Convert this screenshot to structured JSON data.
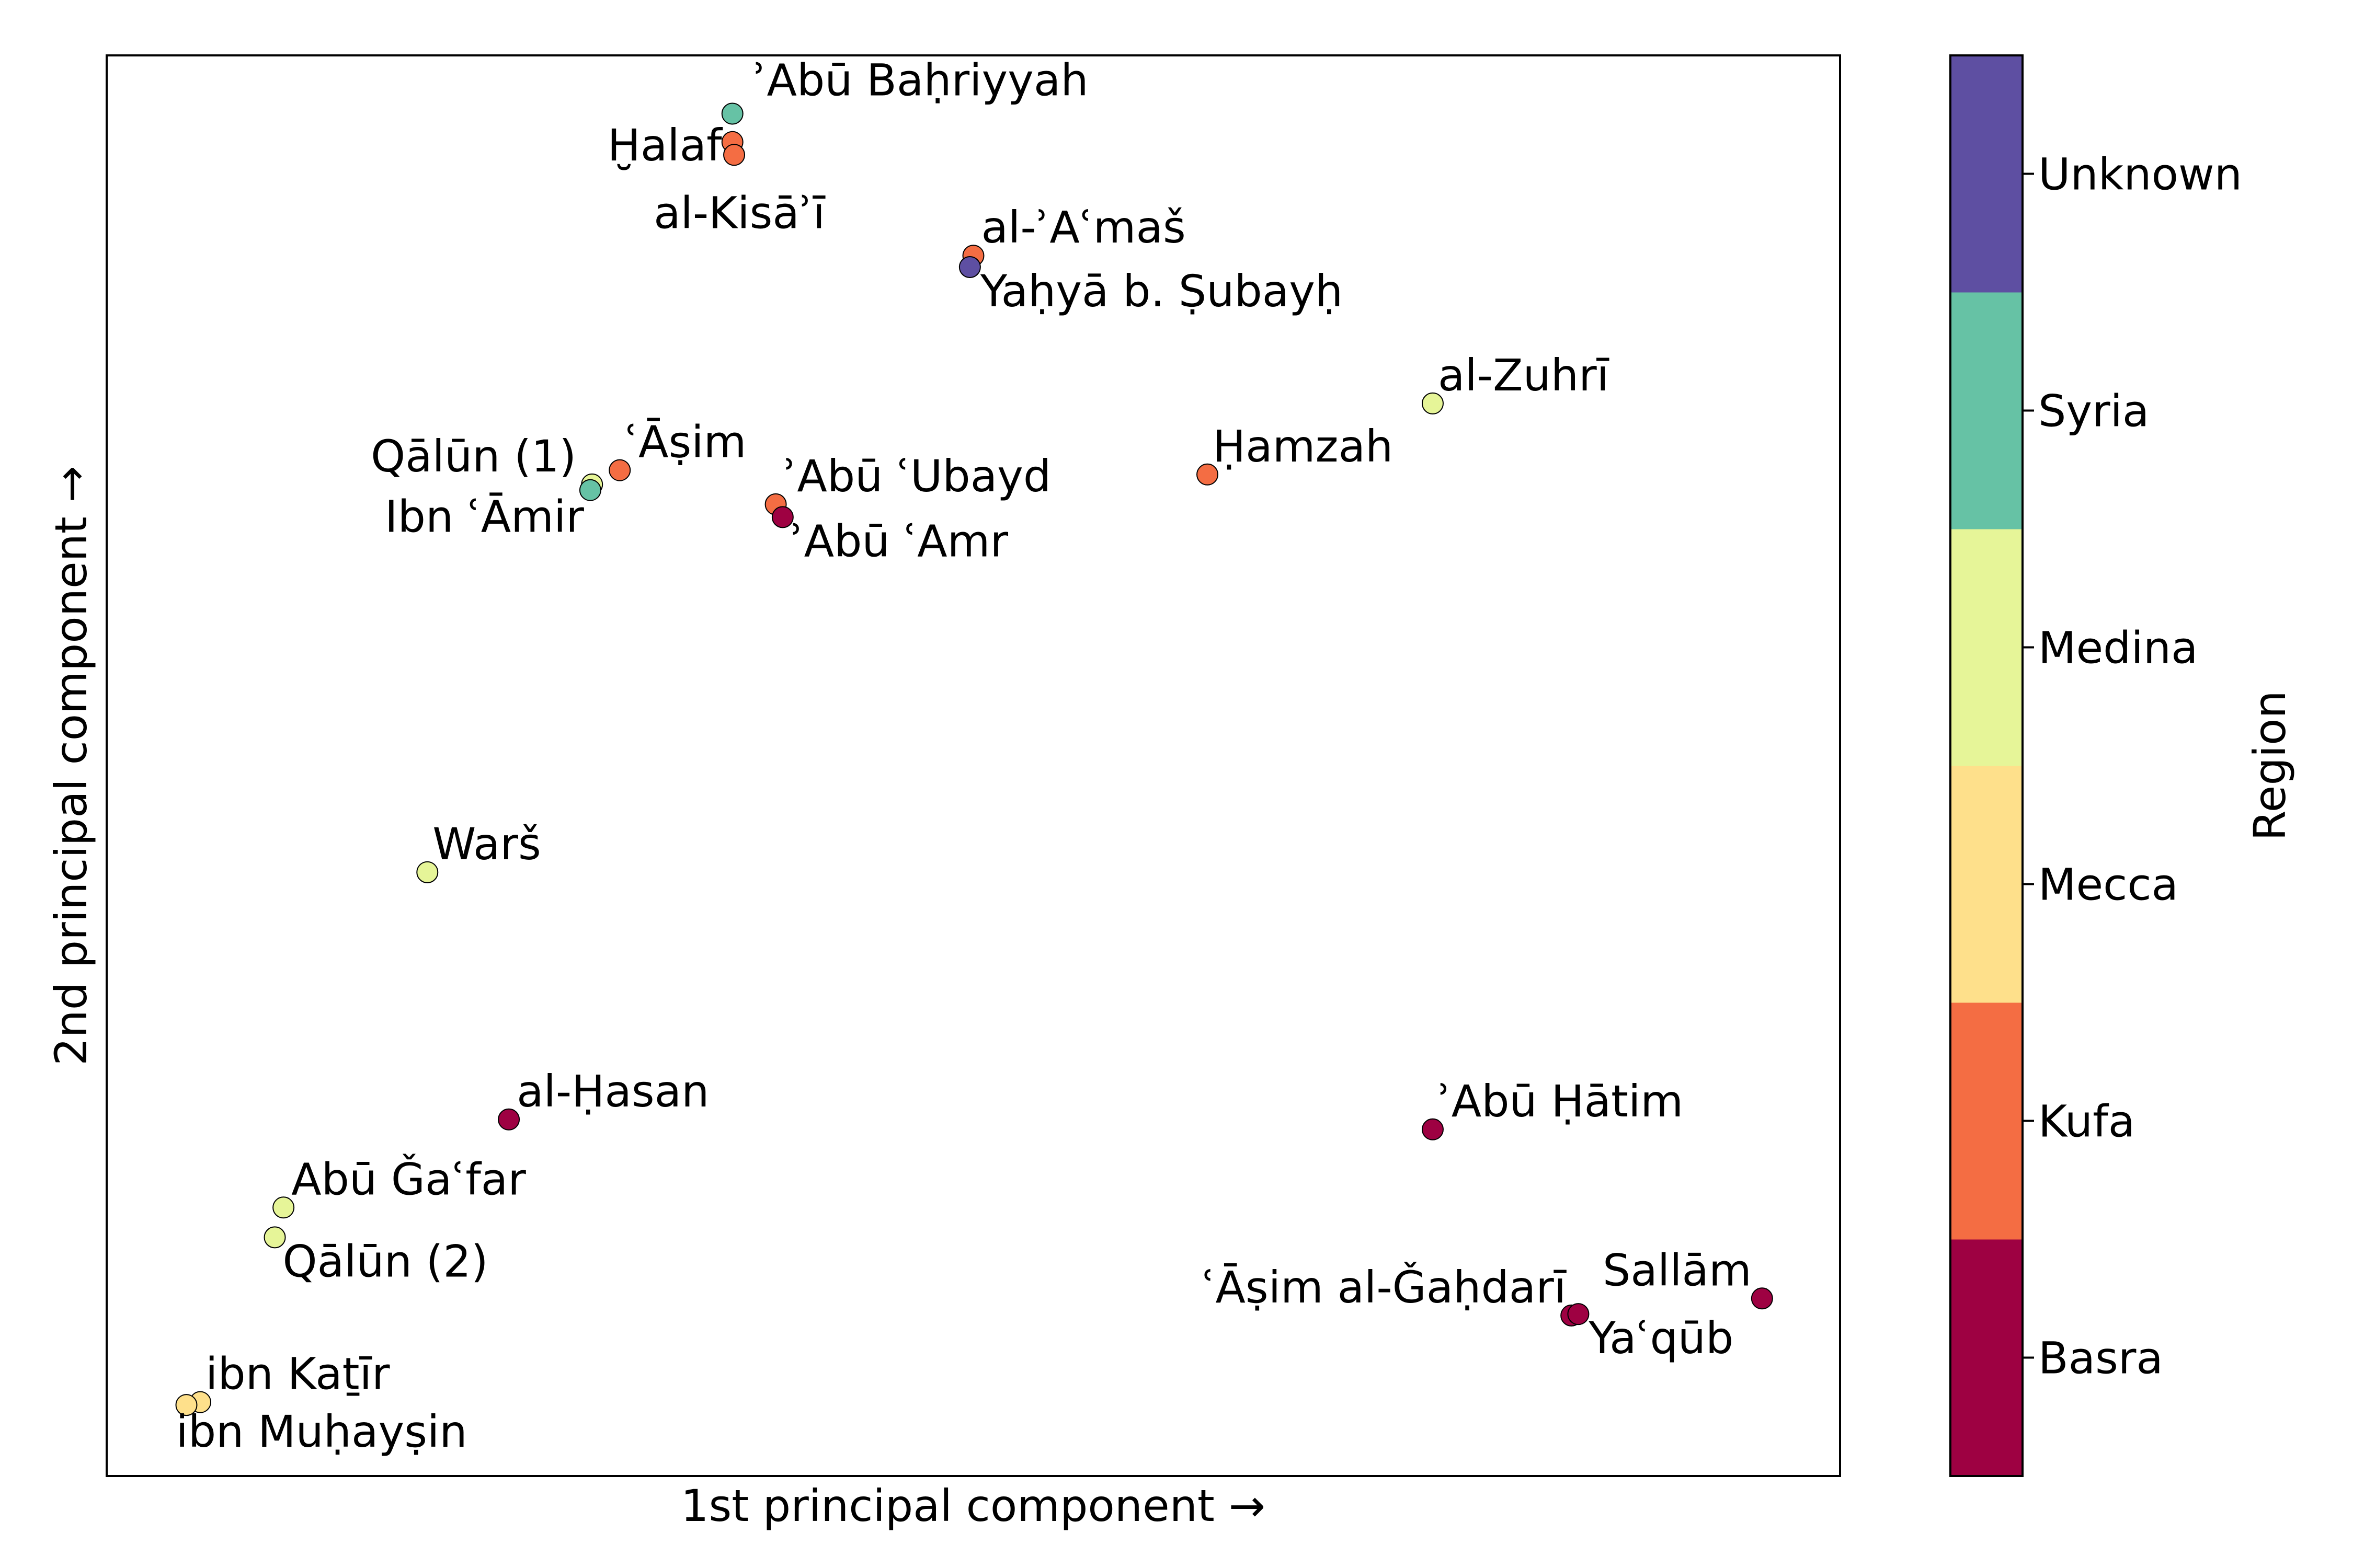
{
  "chart_data": {
    "type": "scatter",
    "title": "",
    "xlabel": "1st principal component →",
    "ylabel": "2nd principal component →",
    "xlim": [
      0,
      100
    ],
    "ylim": [
      0,
      100
    ],
    "grid": false,
    "colorbar": {
      "label": "Region",
      "categories": [
        "Basra",
        "Kufa",
        "Mecca",
        "Medina",
        "Syria",
        "Unknown"
      ],
      "colors": {
        "Basra": "#9e0142",
        "Kufa": "#f46d43",
        "Mecca": "#fee08b",
        "Medina": "#e6f598",
        "Syria": "#66c2a5",
        "Unknown": "#5e4fa2"
      }
    },
    "points": [
      {
        "label": "ʾAbū Baḥriyyah",
        "x": 36.1,
        "y": 95.9,
        "region": "Syria"
      },
      {
        "label": "Ḫalaf",
        "x": 36.1,
        "y": 93.9,
        "region": "Kufa"
      },
      {
        "label": "al-Kisāʾī",
        "x": 36.2,
        "y": 93.0,
        "region": "Kufa"
      },
      {
        "label": "al-ʾAʿmaš",
        "x": 50.0,
        "y": 85.9,
        "region": "Kufa"
      },
      {
        "label": "Yaḥyā b. Ṣubayḥ",
        "x": 49.8,
        "y": 85.1,
        "region": "Unknown"
      },
      {
        "label": "al-Zuhrī",
        "x": 76.5,
        "y": 75.5,
        "region": "Medina"
      },
      {
        "label": "Ḥamzah",
        "x": 63.5,
        "y": 70.5,
        "region": "Kufa"
      },
      {
        "label": "ʿĀṣim",
        "x": 29.6,
        "y": 70.8,
        "region": "Kufa"
      },
      {
        "label": "Qālūn (1)",
        "x": 28.0,
        "y": 69.8,
        "region": "Medina"
      },
      {
        "label": "Ibn ʿĀmir",
        "x": 27.9,
        "y": 69.4,
        "region": "Syria"
      },
      {
        "label": "ʾAbū ʿUbayd",
        "x": 38.6,
        "y": 68.4,
        "region": "Kufa"
      },
      {
        "label": "ʾAbū ʿAmr",
        "x": 39.0,
        "y": 67.5,
        "region": "Basra"
      },
      {
        "label": "Warš",
        "x": 18.5,
        "y": 42.5,
        "region": "Medina"
      },
      {
        "label": "al-Ḥasan",
        "x": 23.2,
        "y": 25.1,
        "region": "Basra"
      },
      {
        "label": "Abū Ǧaʿfar",
        "x": 10.2,
        "y": 18.9,
        "region": "Medina"
      },
      {
        "label": "Qālūn (2)",
        "x": 9.7,
        "y": 16.8,
        "region": "Medina"
      },
      {
        "label": "ʾAbū Ḥātim",
        "x": 76.5,
        "y": 24.4,
        "region": "Basra"
      },
      {
        "label": "Sallām",
        "x": 95.5,
        "y": 12.5,
        "region": "Basra"
      },
      {
        "label": "ʿĀṣim al-Ǧaḥdarī",
        "x": 84.5,
        "y": 11.3,
        "region": "Basra"
      },
      {
        "label": "Yaʿqūb",
        "x": 84.9,
        "y": 11.4,
        "region": "Basra"
      },
      {
        "label": "ibn Kaṯīr",
        "x": 5.4,
        "y": 5.2,
        "region": "Mecca"
      },
      {
        "label": "ibn Muḥayṣin",
        "x": 4.6,
        "y": 5.0,
        "region": "Mecca"
      }
    ]
  }
}
